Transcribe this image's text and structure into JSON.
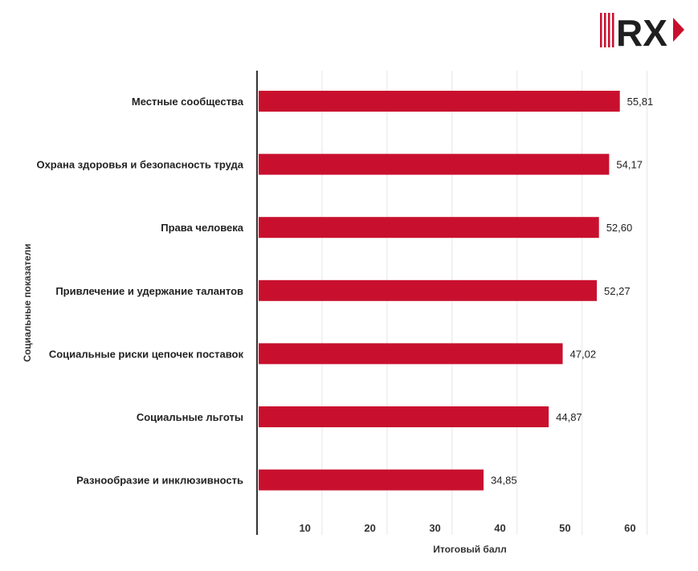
{
  "logo": {
    "text": "RX",
    "colors": {
      "stripes": "#c8102e",
      "letters": "#1f1f1f",
      "accent": "#c8102e"
    }
  },
  "chart_data": {
    "type": "bar",
    "orientation": "horizontal",
    "categories": [
      "Местные сообщества",
      "Охрана здоровья и безопасность труда",
      "Права человека",
      "Привлечение и удержание талантов",
      "Социальные риски цепочек поставок",
      "Социальные льготы",
      "Разнообразие и инклюзивность"
    ],
    "values": [
      55.81,
      54.17,
      52.6,
      52.27,
      47.02,
      44.87,
      34.85
    ],
    "value_labels": [
      "55,81",
      "54,17",
      "52,60",
      "52,27",
      "47,02",
      "44,87",
      "34,85"
    ],
    "xlabel": "Итоговый балл",
    "ylabel": "Социальные показатели",
    "xlim": [
      0,
      60
    ],
    "xticks": [
      "10",
      "20",
      "30",
      "40",
      "50",
      "60"
    ],
    "grid": "vertical",
    "bar_color": "#c8102e"
  }
}
